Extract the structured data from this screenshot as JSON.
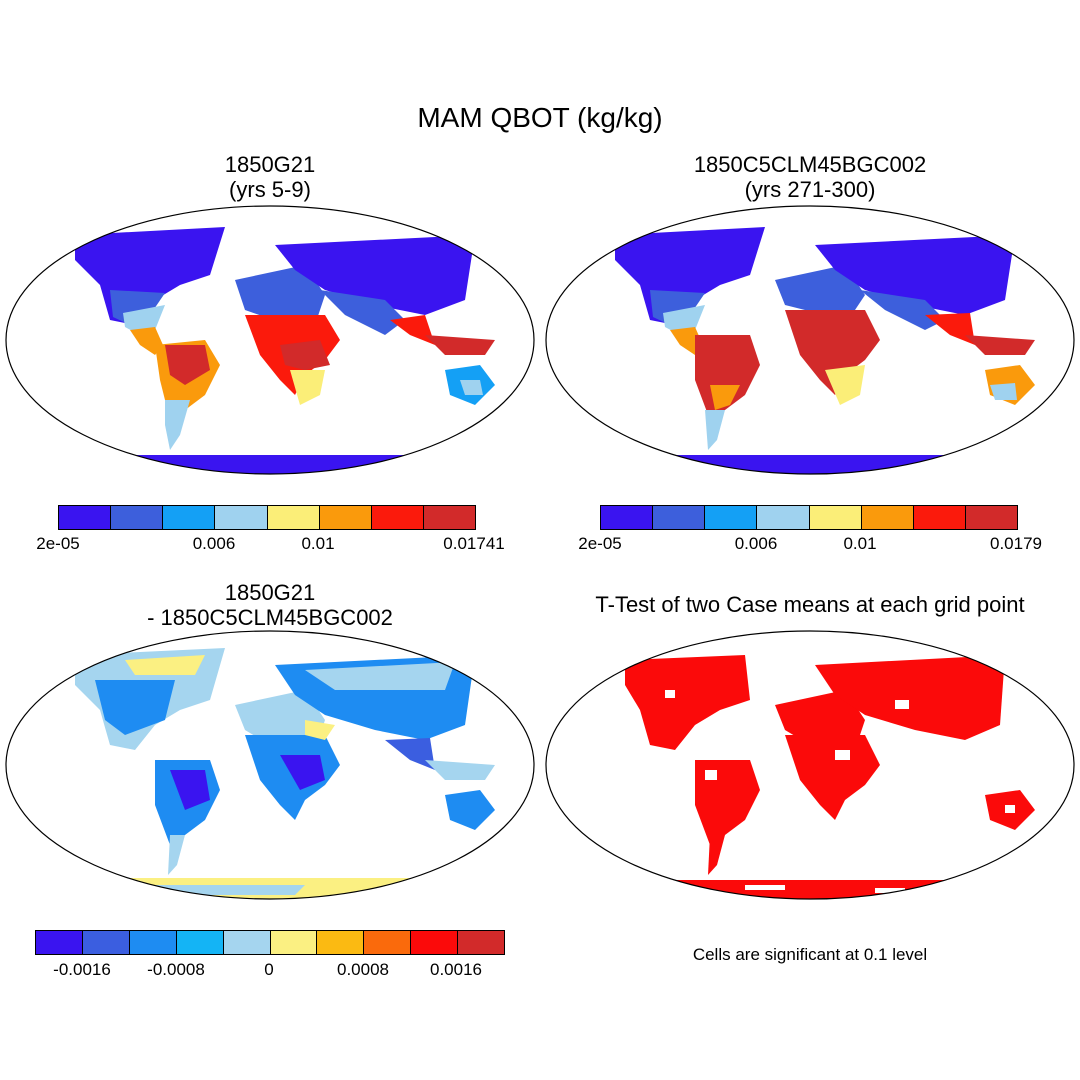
{
  "title": "MAM QBOT (kg/kg)",
  "panels": [
    {
      "line1": "1850G21",
      "line2": "(yrs 5-9)"
    },
    {
      "line1": "1850C5CLM45BGC002",
      "line2": "(yrs 271-300)"
    },
    {
      "line1": "1850G21",
      "line2": "- 1850C5CLM45BGC002"
    },
    {
      "line1": "T-Test of two Case means at each grid point",
      "line2": ""
    }
  ],
  "note": "Cells are significant at 0.1 level",
  "colorbars": [
    {
      "colors": [
        "#3a14f0",
        "#3d5fdc",
        "#14a0f5",
        "#9fd2ef",
        "#fbee78",
        "#fa9a0c",
        "#fb1a0c",
        "#d22a2a"
      ],
      "labels": [
        "2e-05",
        "0.006",
        "0.01",
        "0.01741"
      ]
    },
    {
      "colors": [
        "#3a14f0",
        "#3d5fdc",
        "#14a0f5",
        "#9fd2ef",
        "#fbee78",
        "#fa9a0c",
        "#fb1a0c",
        "#d22a2a"
      ],
      "labels": [
        "2e-05",
        "0.006",
        "0.01",
        "0.0179"
      ]
    },
    {
      "colors": [
        "#3a14f0",
        "#3b5ee0",
        "#1e8cf2",
        "#14b4f5",
        "#a5d5ef",
        "#fbf082",
        "#fbba12",
        "#fa6a0c",
        "#fb0a0a",
        "#d22a2a"
      ],
      "labels": [
        "-0.0016",
        "-0.0008",
        "0",
        "0.0008",
        "0.0016"
      ]
    }
  ]
}
